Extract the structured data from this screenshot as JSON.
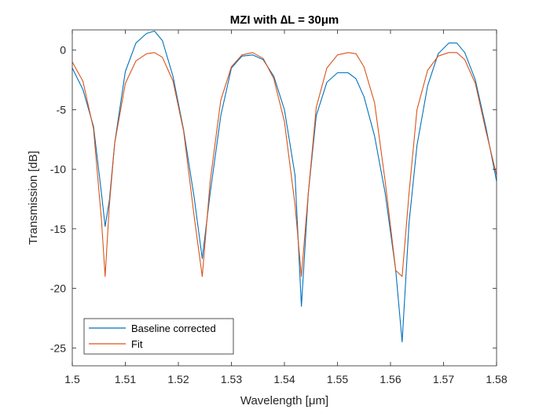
{
  "chart_data": {
    "type": "line",
    "title": "MZI with ∆L = 30μm",
    "xlabel": "Wavelength [μm]",
    "ylabel": "Transmission [dB]",
    "xlim": [
      1.5,
      1.58
    ],
    "ylim": [
      -26.5,
      1.7
    ],
    "xticks": [
      1.5,
      1.51,
      1.52,
      1.53,
      1.54,
      1.55,
      1.56,
      1.57,
      1.58
    ],
    "xtick_labels": [
      "1.5",
      "1.51",
      "1.52",
      "1.53",
      "1.54",
      "1.55",
      "1.56",
      "1.57",
      "1.58"
    ],
    "yticks": [
      0,
      -5,
      -10,
      -15,
      -20,
      -25
    ],
    "ytick_labels": [
      "0",
      "-5",
      "-10",
      "-15",
      "-20",
      "-25"
    ],
    "grid": false,
    "legend_position": "bottom-left",
    "series": [
      {
        "name": "Baseline corrected",
        "color": "#0072BD",
        "x": [
          1.5,
          1.502,
          1.504,
          1.5055,
          1.5062,
          1.507,
          1.508,
          1.51,
          1.512,
          1.514,
          1.5155,
          1.517,
          1.519,
          1.521,
          1.523,
          1.5245,
          1.526,
          1.528,
          1.53,
          1.532,
          1.534,
          1.536,
          1.538,
          1.54,
          1.542,
          1.5432,
          1.5445,
          1.546,
          1.548,
          1.55,
          1.552,
          1.5535,
          1.555,
          1.557,
          1.559,
          1.561,
          1.5622,
          1.5635,
          1.565,
          1.567,
          1.569,
          1.571,
          1.5725,
          1.574,
          1.576,
          1.578,
          1.58
        ],
        "y": [
          -1.5,
          -3.3,
          -6.4,
          -12,
          -14.8,
          -12.6,
          -7.8,
          -1.8,
          0.6,
          1.4,
          1.6,
          0.8,
          -2.2,
          -6.7,
          -12.4,
          -17.5,
          -12,
          -5.5,
          -1.5,
          -0.5,
          -0.4,
          -0.8,
          -2.2,
          -5.0,
          -10.5,
          -21.5,
          -12,
          -5.5,
          -2.7,
          -1.9,
          -1.9,
          -2.4,
          -3.9,
          -7.2,
          -12.0,
          -18.5,
          -24.5,
          -14.5,
          -8.0,
          -3.0,
          -0.3,
          0.6,
          0.6,
          -0.2,
          -2.5,
          -6.5,
          -11.0
        ]
      },
      {
        "name": "Fit",
        "color": "#D95319",
        "x": [
          1.5,
          1.502,
          1.504,
          1.5055,
          1.5062,
          1.507,
          1.508,
          1.51,
          1.512,
          1.514,
          1.5155,
          1.517,
          1.519,
          1.521,
          1.523,
          1.5245,
          1.526,
          1.528,
          1.53,
          1.532,
          1.534,
          1.536,
          1.538,
          1.54,
          1.542,
          1.5432,
          1.5445,
          1.546,
          1.548,
          1.55,
          1.552,
          1.5535,
          1.555,
          1.557,
          1.559,
          1.561,
          1.5622,
          1.5635,
          1.565,
          1.567,
          1.569,
          1.571,
          1.5725,
          1.574,
          1.576,
          1.578,
          1.58
        ],
        "y": [
          -1.0,
          -2.6,
          -6.6,
          -14.2,
          -19.0,
          -13.0,
          -7.8,
          -2.8,
          -0.9,
          -0.3,
          -0.2,
          -0.6,
          -2.6,
          -6.8,
          -14.0,
          -19.0,
          -11.0,
          -4.2,
          -1.4,
          -0.4,
          -0.2,
          -0.7,
          -2.4,
          -6.0,
          -13.0,
          -19.0,
          -12.0,
          -4.8,
          -1.5,
          -0.4,
          -0.2,
          -0.3,
          -1.4,
          -4.4,
          -11.0,
          -18.5,
          -19.0,
          -12.0,
          -5.0,
          -1.7,
          -0.5,
          -0.2,
          -0.2,
          -0.8,
          -2.8,
          -6.8,
          -10.5
        ]
      }
    ]
  }
}
